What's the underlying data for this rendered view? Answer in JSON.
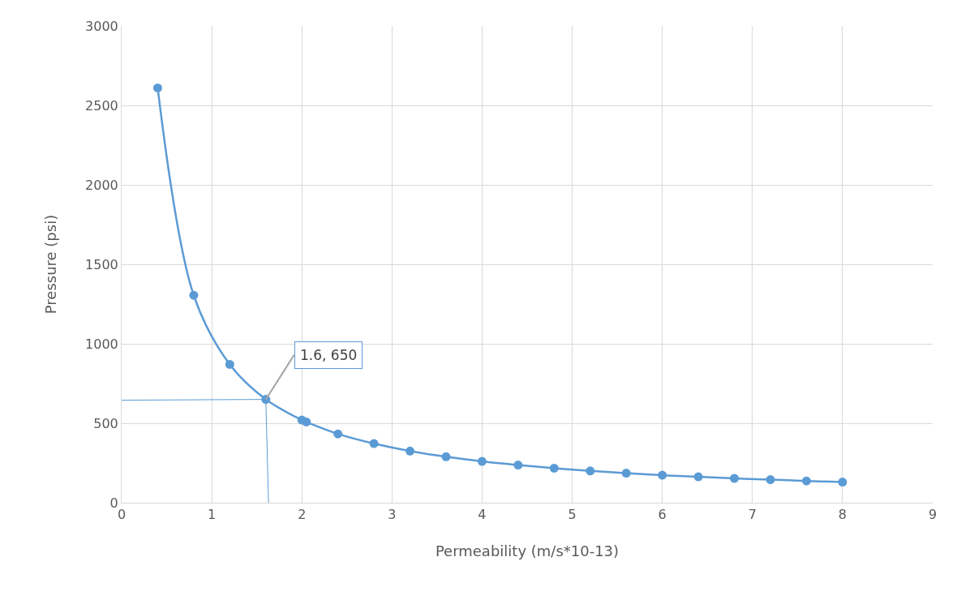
{
  "chart_data": {
    "type": "line",
    "xlabel": "Permeability (m/s*10-13)",
    "ylabel": "Pressure (psi)",
    "series": [
      {
        "marker": "circle",
        "color": "#5b9bd5",
        "x": [
          0.4,
          0.8,
          1.2,
          1.6,
          2.0,
          2.05,
          2.4,
          2.8,
          3.2,
          3.6,
          4.0,
          4.4,
          4.8,
          5.2,
          5.6,
          6.0,
          6.4,
          6.8,
          7.2,
          7.6,
          8.0
        ],
        "values": [
          2610,
          1305,
          870,
          650,
          520,
          508,
          433,
          372,
          325,
          289,
          260,
          237,
          217,
          200,
          186,
          173,
          163,
          153,
          145,
          137,
          130
        ]
      },
      {
        "marker": "none",
        "color": "#5b9bd5",
        "x": [
          0,
          1.6,
          1.63
        ],
        "values": [
          645,
          650,
          0
        ]
      }
    ],
    "xlim": [
      0,
      9
    ],
    "xticks": [
      0,
      1,
      2,
      3,
      4,
      5,
      6,
      7,
      8,
      9
    ],
    "ylim": [
      0,
      3000
    ],
    "yticks": [
      0,
      500,
      1000,
      1500,
      2000,
      2500,
      3000
    ],
    "grid": true,
    "annotations": [
      {
        "text": "1.6, 650",
        "x": 1.6,
        "y": 650
      }
    ]
  }
}
